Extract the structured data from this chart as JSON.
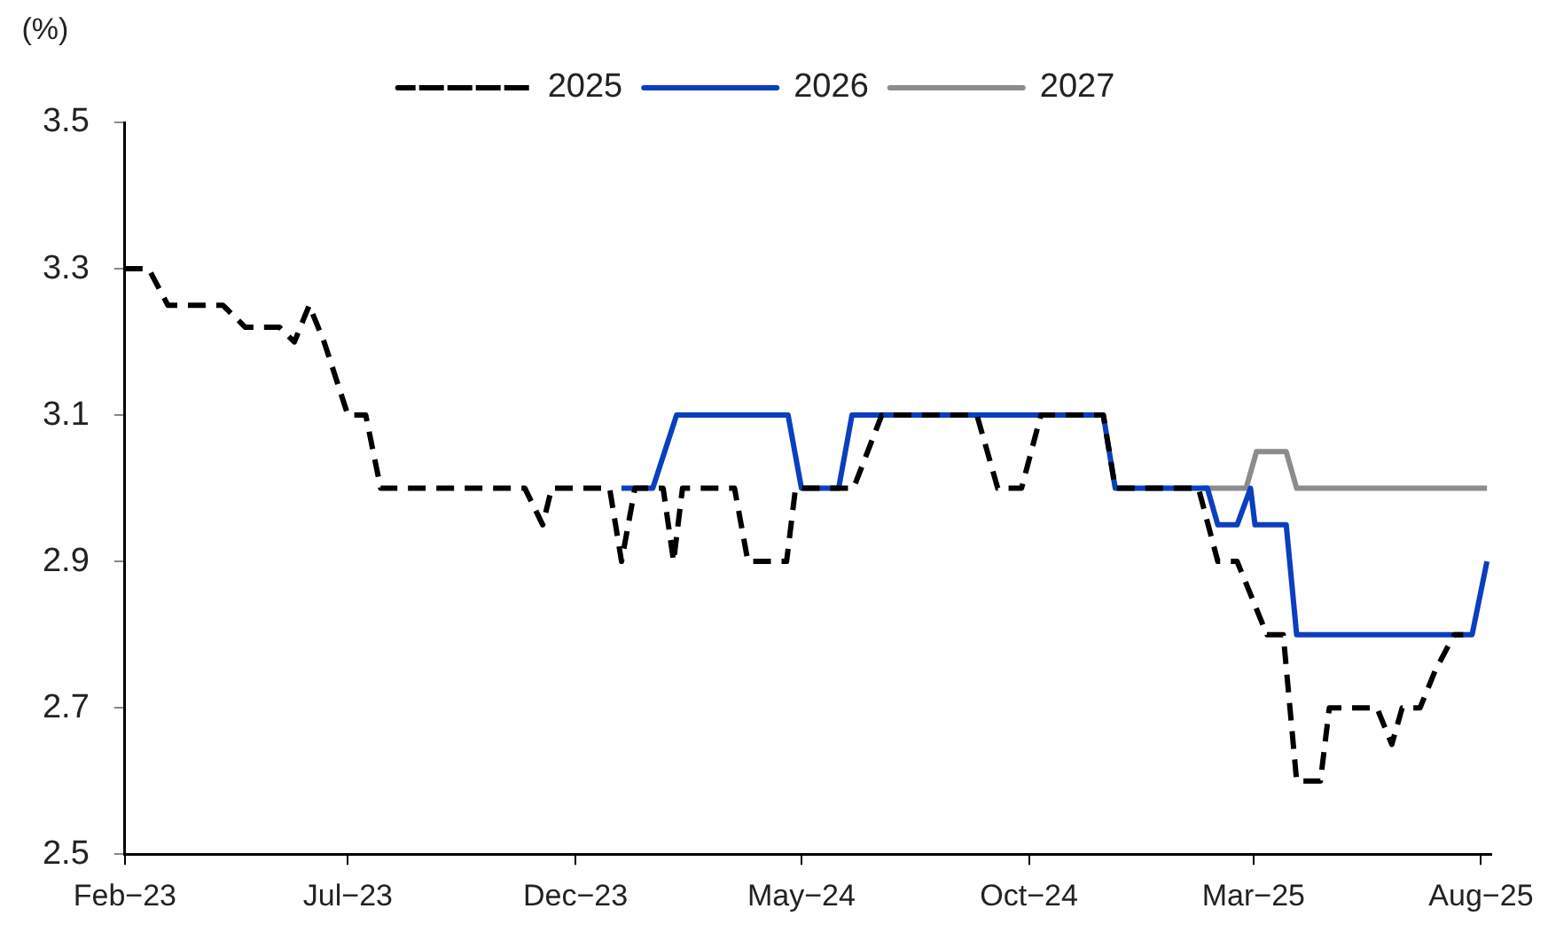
{
  "chart_data": {
    "type": "line",
    "ylabel": "(%)",
    "legend": "top",
    "grid": false,
    "marker": "none",
    "xlim": [
      "2023-02-01",
      "2025-08-08"
    ],
    "xticks": [
      {
        "value": "2023-02-01",
        "label": "Feb−23"
      },
      {
        "value": "2023-07-01",
        "label": "Jul−23"
      },
      {
        "value": "2023-12-01",
        "label": "Dec−23"
      },
      {
        "value": "2024-05-01",
        "label": "May−24"
      },
      {
        "value": "2024-10-01",
        "label": "Oct−24"
      },
      {
        "value": "2025-03-01",
        "label": "Mar−25"
      },
      {
        "value": "2025-08-01",
        "label": "Aug−25"
      }
    ],
    "ylim": [
      2.5,
      3.5
    ],
    "yticks": [
      2.5,
      2.7,
      2.9,
      3.1,
      3.3,
      3.5
    ],
    "series": [
      {
        "name": "2025",
        "color": "#000000",
        "line_style": "dashed",
        "x": [
          "2023-02-01",
          "2023-02-17",
          "2023-03-02",
          "2023-04-08",
          "2023-04-23",
          "2023-05-16",
          "2023-05-26",
          "2023-06-05",
          "2023-06-15",
          "2023-07-01",
          "2023-07-13",
          "2023-07-23",
          "2023-10-28",
          "2023-11-09",
          "2023-11-15",
          "2023-12-24",
          "2024-01-01",
          "2024-01-10",
          "2024-01-29",
          "2024-02-05",
          "2024-02-11",
          "2024-03-17",
          "2024-03-26",
          "2024-04-21",
          "2024-04-27",
          "2024-06-05",
          "2024-06-24",
          "2024-08-27",
          "2024-09-10",
          "2024-09-26",
          "2024-10-09",
          "2024-11-20",
          "2024-11-28",
          "2025-01-23",
          "2025-02-05",
          "2025-02-18",
          "2025-03-10",
          "2025-03-21",
          "2025-03-30",
          "2025-04-15",
          "2025-04-21",
          "2025-05-23",
          "2025-06-02",
          "2025-06-09",
          "2025-06-21",
          "2025-07-01",
          "2025-07-14",
          "2025-07-20"
        ],
        "values": [
          3.3,
          3.3,
          3.25,
          3.25,
          3.22,
          3.22,
          3.2,
          3.25,
          3.2,
          3.1,
          3.1,
          3.0,
          3.0,
          2.95,
          3.0,
          3.0,
          2.9,
          3.0,
          3.0,
          2.9,
          3.0,
          3.0,
          2.9,
          2.9,
          3.0,
          3.0,
          3.1,
          3.1,
          3.0,
          3.0,
          3.1,
          3.1,
          3.0,
          3.0,
          2.9,
          2.9,
          2.8,
          2.8,
          2.6,
          2.6,
          2.7,
          2.7,
          2.65,
          2.7,
          2.7,
          2.75,
          2.8,
          2.8
        ]
      },
      {
        "name": "2026",
        "color": "#0a3fbf",
        "line_style": "solid",
        "x": [
          "2024-01-01",
          "2024-01-22",
          "2024-02-07",
          "2024-04-22",
          "2024-05-01",
          "2024-05-26",
          "2024-06-04",
          "2024-11-20",
          "2024-11-28",
          "2025-01-29",
          "2025-02-05",
          "2025-02-18",
          "2025-02-27",
          "2025-03-02",
          "2025-03-23",
          "2025-03-30",
          "2025-07-26",
          "2025-08-05"
        ],
        "values": [
          3.0,
          3.0,
          3.1,
          3.1,
          3.0,
          3.0,
          3.1,
          3.1,
          3.0,
          3.0,
          2.95,
          2.95,
          3.0,
          2.95,
          2.95,
          2.8,
          2.8,
          2.9
        ]
      },
      {
        "name": "2027",
        "color": "#8c8c8c",
        "line_style": "solid",
        "x": [
          "2025-01-26",
          "2025-02-24",
          "2025-03-03",
          "2025-03-23",
          "2025-03-30",
          "2025-08-05"
        ],
        "values": [
          3.0,
          3.0,
          3.05,
          3.05,
          3.0,
          3.0
        ]
      }
    ]
  }
}
